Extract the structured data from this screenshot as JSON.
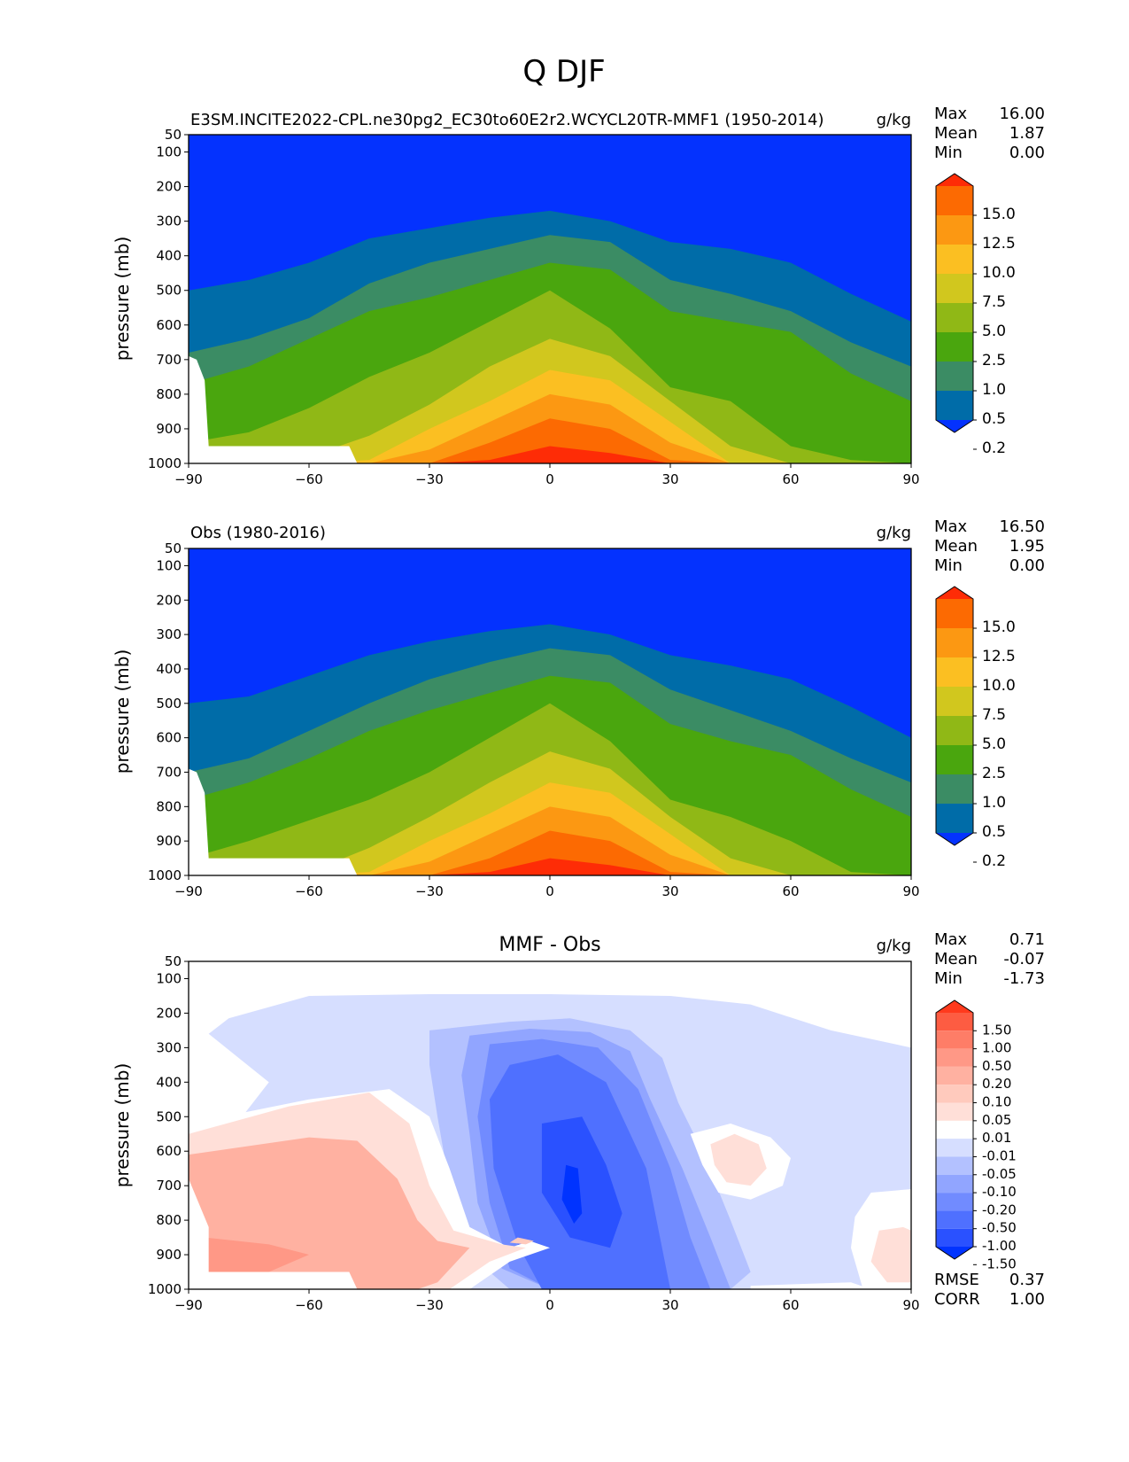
{
  "figure_title": "Q DJF",
  "colors": {
    "levels_main": [
      "#0432fe",
      "#006ca8",
      "#3b8c64",
      "#4aa60e",
      "#90b816",
      "#d1c71e",
      "#fbbf22",
      "#fc9812",
      "#fc6a02",
      "#fe2c06"
    ],
    "levels_diff": [
      "#0033ff",
      "#2a51ff",
      "#4f70ff",
      "#718bff",
      "#91a5ff",
      "#b3c1ff",
      "#d6deff",
      "#ffffff",
      "#ffdfd8",
      "#ffcabd",
      "#ffb1a1",
      "#ff9886",
      "#fe7d67",
      "#fd5c42",
      "#ff3a1d"
    ]
  },
  "chart_data": [
    {
      "type": "contour",
      "title": "E3SM.INCITE2022-CPL.ne30pg2_EC30to60E2r2.WCYCL20TR-MMF1 (1950-2014)",
      "units": "g/kg",
      "xlabel": "",
      "ylabel": "pressure (mb)",
      "xlim": [
        -90,
        90
      ],
      "ylim": [
        1000,
        50
      ],
      "xticks": [
        "−90",
        "−60",
        "−30",
        "0",
        "30",
        "60",
        "90"
      ],
      "yticks": [
        "50",
        "100",
        "200",
        "300",
        "400",
        "500",
        "600",
        "700",
        "800",
        "900",
        "1000"
      ],
      "stats": {
        "max_label": "Max",
        "max": "16.00",
        "mean_label": "Mean",
        "mean": "1.87",
        "min_label": "Min",
        "min": "0.00"
      },
      "colorbar_labels": [
        "15.0",
        "12.5",
        "10.0",
        "7.5",
        "5.0",
        "2.5",
        "1.0",
        "0.5",
        "0.2"
      ],
      "contour_tops_mb": {
        "lat": [
          -90,
          -75,
          -60,
          -45,
          -30,
          -15,
          0,
          15,
          30,
          45,
          60,
          75,
          90
        ],
        "levels": [
          [
            500,
            470,
            420,
            350,
            320,
            290,
            270,
            300,
            360,
            380,
            420,
            510,
            590
          ],
          [
            680,
            640,
            580,
            480,
            420,
            380,
            340,
            360,
            470,
            510,
            560,
            650,
            720
          ],
          [
            770,
            720,
            640,
            560,
            520,
            470,
            420,
            440,
            560,
            590,
            620,
            740,
            820
          ],
          [
            940,
            910,
            840,
            750,
            680,
            590,
            500,
            610,
            780,
            820,
            950,
            990,
            1010
          ],
          [
            1010,
            1000,
            980,
            920,
            830,
            720,
            640,
            690,
            820,
            950,
            1010,
            1010,
            1010
          ],
          [
            1010,
            1010,
            1010,
            990,
            900,
            820,
            730,
            760,
            880,
            1000,
            1010,
            1010,
            1010
          ],
          [
            1010,
            1010,
            1010,
            1010,
            960,
            880,
            800,
            830,
            940,
            1010,
            1010,
            1010,
            1010
          ],
          [
            1010,
            1010,
            1010,
            1010,
            1000,
            940,
            870,
            900,
            990,
            1010,
            1010,
            1010,
            1010
          ],
          [
            1010,
            1010,
            1010,
            1010,
            1010,
            990,
            950,
            970,
            1010,
            1010,
            1010,
            1010,
            1010
          ]
        ]
      }
    },
    {
      "type": "contour",
      "title": "Obs (1980-2016)",
      "units": "g/kg",
      "xlabel": "",
      "ylabel": "pressure (mb)",
      "xlim": [
        -90,
        90
      ],
      "ylim": [
        1000,
        50
      ],
      "xticks": [
        "−90",
        "−60",
        "−30",
        "0",
        "30",
        "60",
        "90"
      ],
      "yticks": [
        "50",
        "100",
        "200",
        "300",
        "400",
        "500",
        "600",
        "700",
        "800",
        "900",
        "1000"
      ],
      "stats": {
        "max_label": "Max",
        "max": "16.50",
        "mean_label": "Mean",
        "mean": "1.95",
        "min_label": "Min",
        "min": "0.00"
      },
      "colorbar_labels": [
        "15.0",
        "12.5",
        "10.0",
        "7.5",
        "5.0",
        "2.5",
        "1.0",
        "0.5",
        "0.2"
      ],
      "contour_tops_mb": {
        "lat": [
          -90,
          -75,
          -60,
          -45,
          -30,
          -15,
          0,
          15,
          30,
          45,
          60,
          75,
          90
        ],
        "levels": [
          [
            500,
            480,
            420,
            360,
            320,
            290,
            270,
            300,
            360,
            390,
            430,
            510,
            600
          ],
          [
            700,
            660,
            580,
            500,
            430,
            380,
            340,
            360,
            460,
            520,
            580,
            660,
            730
          ],
          [
            780,
            730,
            660,
            580,
            520,
            470,
            420,
            440,
            560,
            610,
            650,
            750,
            830
          ],
          [
            950,
            900,
            840,
            780,
            700,
            600,
            500,
            610,
            780,
            830,
            900,
            990,
            1010
          ],
          [
            1010,
            1000,
            990,
            920,
            830,
            730,
            640,
            690,
            830,
            950,
            1010,
            1010,
            1010
          ],
          [
            1010,
            1010,
            1010,
            990,
            900,
            820,
            730,
            760,
            880,
            1000,
            1010,
            1010,
            1010
          ],
          [
            1010,
            1010,
            1010,
            1010,
            960,
            880,
            800,
            830,
            940,
            1010,
            1010,
            1010,
            1010
          ],
          [
            1010,
            1010,
            1010,
            1010,
            1000,
            950,
            870,
            900,
            990,
            1010,
            1010,
            1010,
            1010
          ],
          [
            1010,
            1010,
            1010,
            1010,
            1010,
            990,
            950,
            970,
            1010,
            1010,
            1010,
            1010,
            1010
          ]
        ]
      }
    },
    {
      "type": "contour",
      "title": "MMF - Obs",
      "units": "g/kg",
      "xlabel": "",
      "ylabel": "pressure (mb)",
      "xlim": [
        -90,
        90
      ],
      "ylim": [
        1000,
        50
      ],
      "xticks": [
        "−90",
        "−60",
        "−30",
        "0",
        "30",
        "60",
        "90"
      ],
      "yticks": [
        "50",
        "100",
        "200",
        "300",
        "400",
        "500",
        "600",
        "700",
        "800",
        "900",
        "1000"
      ],
      "stats": {
        "max_label": "Max",
        "max": "0.71",
        "mean_label": "Mean",
        "mean": "-0.07",
        "min_label": "Min",
        "min": "-1.73"
      },
      "colorbar_labels": [
        "1.50",
        "1.00",
        "0.50",
        "0.20",
        "0.10",
        "0.05",
        "0.01",
        "-0.01",
        "-0.05",
        "-0.10",
        "-0.20",
        "-0.50",
        "-1.00",
        "-1.50"
      ],
      "metrics": {
        "rmse_label": "RMSE",
        "rmse": "0.37",
        "corr_label": "CORR",
        "corr": "1.00"
      },
      "regions": [
        {
          "level": 6,
          "points": [
            [
              -80,
              215
            ],
            [
              -60,
              150
            ],
            [
              -30,
              145
            ],
            [
              0,
              145
            ],
            [
              30,
              150
            ],
            [
              50,
              175
            ],
            [
              70,
              250
            ],
            [
              90,
              300
            ],
            [
              90,
              1000
            ],
            [
              -90,
              1000
            ],
            [
              -90,
              700
            ],
            [
              -70,
              400
            ],
            [
              -85,
              260
            ]
          ]
        },
        {
          "level": 5,
          "points": [
            [
              -30,
              250
            ],
            [
              -10,
              225
            ],
            [
              5,
              215
            ],
            [
              20,
              250
            ],
            [
              28,
              330
            ],
            [
              32,
              460
            ],
            [
              38,
              600
            ],
            [
              45,
              800
            ],
            [
              50,
              950
            ],
            [
              45,
              1000
            ],
            [
              -10,
              1000
            ],
            [
              -20,
              900
            ],
            [
              -25,
              700
            ],
            [
              -28,
              500
            ],
            [
              -30,
              350
            ]
          ]
        },
        {
          "level": 4,
          "points": [
            [
              -20,
              265
            ],
            [
              -5,
              245
            ],
            [
              10,
              255
            ],
            [
              20,
              310
            ],
            [
              25,
              450
            ],
            [
              33,
              650
            ],
            [
              40,
              850
            ],
            [
              45,
              1000
            ],
            [
              0,
              1000
            ],
            [
              -12,
              940
            ],
            [
              -18,
              750
            ],
            [
              -20,
              550
            ],
            [
              -22,
              380
            ]
          ]
        },
        {
          "level": 3,
          "points": [
            [
              -15,
              290
            ],
            [
              -2,
              275
            ],
            [
              12,
              300
            ],
            [
              22,
              420
            ],
            [
              30,
              650
            ],
            [
              35,
              850
            ],
            [
              40,
              1000
            ],
            [
              0,
              1000
            ],
            [
              -10,
              940
            ],
            [
              -15,
              750
            ],
            [
              -18,
              500
            ]
          ]
        },
        {
          "level": 2,
          "points": [
            [
              -10,
              350
            ],
            [
              2,
              320
            ],
            [
              14,
              400
            ],
            [
              24,
              650
            ],
            [
              30,
              1000
            ],
            [
              -2,
              1000
            ],
            [
              -8,
              870
            ],
            [
              -14,
              650
            ],
            [
              -15,
              450
            ]
          ]
        },
        {
          "level": 1,
          "points": [
            [
              -2,
              520
            ],
            [
              8,
              500
            ],
            [
              14,
              640
            ],
            [
              18,
              780
            ],
            [
              15,
              880
            ],
            [
              5,
              850
            ],
            [
              -2,
              720
            ]
          ]
        },
        {
          "level": 0,
          "points": [
            [
              4,
              640
            ],
            [
              7,
              650
            ],
            [
              8,
              780
            ],
            [
              6,
              810
            ],
            [
              3,
              740
            ]
          ]
        },
        {
          "level": 7,
          "points": [
            [
              -90,
              520
            ],
            [
              -60,
              450
            ],
            [
              -40,
              420
            ],
            [
              -30,
              500
            ],
            [
              -25,
              650
            ],
            [
              -20,
              820
            ],
            [
              -10,
              880
            ],
            [
              -5,
              860
            ],
            [
              0,
              880
            ],
            [
              -10,
              920
            ],
            [
              -20,
              1000
            ],
            [
              -90,
              1000
            ]
          ]
        },
        {
          "level": 8,
          "points": [
            [
              -90,
              550
            ],
            [
              -65,
              470
            ],
            [
              -45,
              430
            ],
            [
              -35,
              520
            ],
            [
              -30,
              700
            ],
            [
              -24,
              830
            ],
            [
              -12,
              870
            ],
            [
              -6,
              880
            ],
            [
              -15,
              920
            ],
            [
              -25,
              1000
            ],
            [
              -90,
              1000
            ]
          ]
        },
        {
          "level": 10,
          "points": [
            [
              -90,
              610
            ],
            [
              -60,
              560
            ],
            [
              -48,
              570
            ],
            [
              -38,
              680
            ],
            [
              -33,
              800
            ],
            [
              -28,
              860
            ],
            [
              -20,
              880
            ],
            [
              -28,
              980
            ],
            [
              -33,
              1000
            ],
            [
              -90,
              1000
            ]
          ]
        },
        {
          "level": 11,
          "points": [
            [
              -86,
              850
            ],
            [
              -70,
              870
            ],
            [
              -60,
              900
            ],
            [
              -70,
              950
            ],
            [
              -86,
              950
            ]
          ]
        },
        {
          "level": 9,
          "points": [
            [
              -8,
              850
            ],
            [
              -4,
              860
            ],
            [
              -6,
              870
            ],
            [
              -10,
              865
            ]
          ]
        },
        {
          "level": 7,
          "points": [
            [
              35,
              550
            ],
            [
              45,
              520
            ],
            [
              55,
              560
            ],
            [
              60,
              620
            ],
            [
              58,
              700
            ],
            [
              50,
              740
            ],
            [
              42,
              720
            ],
            [
              38,
              640
            ]
          ]
        },
        {
          "level": 8,
          "points": [
            [
              40,
              580
            ],
            [
              46,
              550
            ],
            [
              52,
              580
            ],
            [
              54,
              650
            ],
            [
              50,
              700
            ],
            [
              44,
              690
            ],
            [
              41,
              640
            ]
          ]
        },
        {
          "level": 7,
          "points": [
            [
              80,
              720
            ],
            [
              90,
              710
            ],
            [
              90,
              1000
            ],
            [
              78,
              1000
            ],
            [
              75,
              880
            ],
            [
              76,
              790
            ]
          ]
        },
        {
          "level": 8,
          "points": [
            [
              82,
              830
            ],
            [
              88,
              820
            ],
            [
              90,
              830
            ],
            [
              90,
              980
            ],
            [
              84,
              980
            ],
            [
              80,
              920
            ]
          ]
        },
        {
          "level": 7,
          "points": [
            [
              50,
              990
            ],
            [
              75,
              980
            ],
            [
              80,
              1000
            ],
            [
              50,
              1000
            ]
          ]
        }
      ]
    }
  ]
}
